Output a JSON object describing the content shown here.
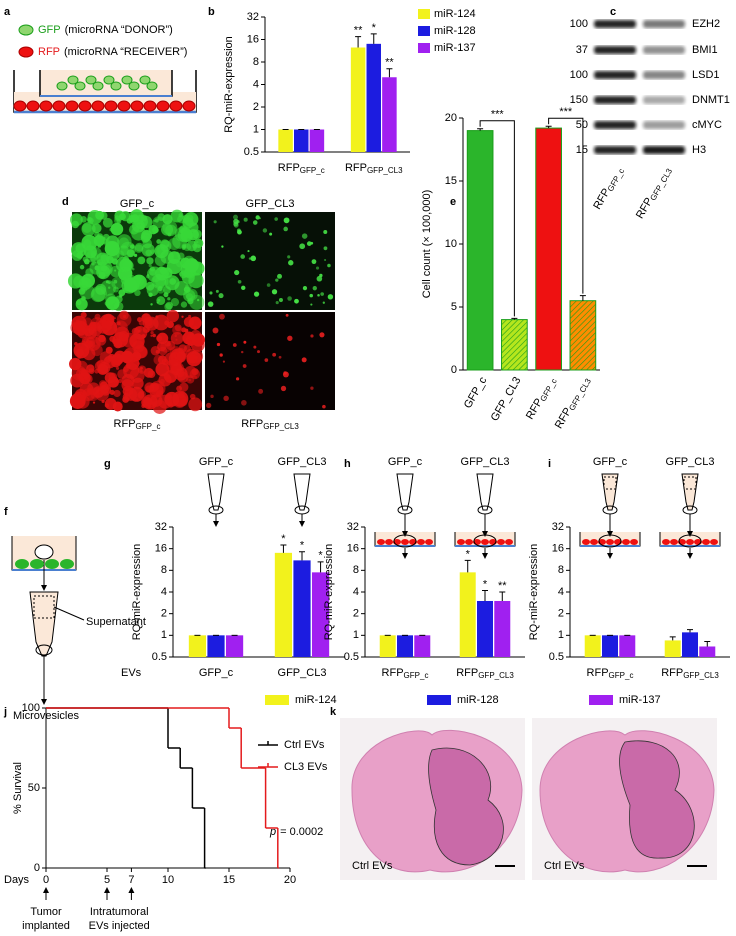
{
  "figure": {
    "a": {
      "letter": "a",
      "legend": [
        {
          "marker": "GFP",
          "text": "(microRNA “DONOR”)"
        },
        {
          "marker": "RFP",
          "text": "(microRNA “RECEIVER”)"
        }
      ]
    },
    "c": {
      "letter": "c",
      "markers": [
        100,
        37,
        100,
        150,
        50,
        15
      ],
      "proteins": [
        "EZH2",
        "BMI1",
        "LSD1",
        "DNMT1",
        "cMYC",
        "H3"
      ],
      "lanes": [
        {
          "main": "RFP",
          "sub": "GFP_c"
        },
        {
          "main": "RFP",
          "sub": "GFP_CL3"
        }
      ]
    },
    "d": {
      "letter": "d",
      "top": [
        "GFP_c",
        "GFP_CL3"
      ],
      "bottom": [
        {
          "main": "RFP",
          "sub": "GFP_c"
        },
        {
          "main": "RFP",
          "sub": "GFP_CL3"
        }
      ]
    },
    "f": {
      "letter": "f",
      "labels": [
        "Supernatant",
        "Microvesicles"
      ]
    },
    "k": {
      "letter": "k",
      "captions": [
        "Ctrl EVs",
        "Ctrl EVs"
      ]
    }
  },
  "chart_data": [
    {
      "type": "bar",
      "label": "b",
      "ylabel": "RQ-miR-expression",
      "yscale": "log",
      "ylim": [
        0.5,
        32
      ],
      "yticks": [
        0.5,
        1,
        2,
        4,
        8,
        16,
        32
      ],
      "categories": [
        "RFP",
        "RFP"
      ],
      "category_subscripts": [
        "GFP_c",
        "GFP_CL3"
      ],
      "category_color": "#e41a1c",
      "legend": "right",
      "series": [
        {
          "name": "miR-124",
          "color": "#f2f21c",
          "values": [
            1,
            12.5
          ],
          "errors": [
            0,
            5
          ],
          "stars": [
            null,
            "**"
          ]
        },
        {
          "name": "miR-128",
          "color": "#1c1ce0",
          "values": [
            1,
            14
          ],
          "errors": [
            0,
            5
          ],
          "stars": [
            null,
            "*"
          ]
        },
        {
          "name": "miR-137",
          "color": "#a020f0",
          "values": [
            1,
            5
          ],
          "errors": [
            0,
            1.5
          ],
          "stars": [
            null,
            "**"
          ]
        }
      ]
    },
    {
      "type": "bar",
      "label": "e",
      "ylabel": "Cell count (× 100,000)",
      "ylim": [
        0,
        20
      ],
      "yticks": [
        0,
        5,
        10,
        15,
        20
      ],
      "categories": [
        "GFP_c",
        "GFP_CL3",
        "RFP",
        "RFP"
      ],
      "category_subscripts": [
        null,
        null,
        "GFP_c",
        "GFP_CL3"
      ],
      "category_colors": [
        "#1a9e1a",
        "#1a9e1a",
        "#e41a1c",
        "#e41a1c"
      ],
      "values": [
        19,
        4,
        19.2,
        5.5
      ],
      "errors": [
        0.15,
        0.1,
        0.15,
        0.4
      ],
      "colors": [
        "#2bb52b",
        "#b5e61d",
        "#ee1111",
        "#ff8c00"
      ],
      "hatched": [
        false,
        true,
        false,
        true
      ],
      "brackets": [
        "***",
        "***"
      ]
    },
    {
      "type": "bar",
      "label": "g",
      "ylabel": "RQ-miR-expression",
      "yscale": "log",
      "ylim": [
        0.5,
        32
      ],
      "yticks": [
        0.5,
        1,
        2,
        4,
        8,
        16,
        32
      ],
      "x_prefix": "EVs",
      "top_labels": [
        "GFP_c",
        "GFP_CL3"
      ],
      "categories": [
        "GFP_c",
        "GFP_CL3"
      ],
      "category_color": "#1a9e1a",
      "legend": "bottom",
      "series": [
        {
          "name": "miR-124",
          "color": "#f2f21c",
          "values": [
            1,
            14
          ],
          "errors": [
            0,
            4
          ],
          "stars": [
            null,
            "*"
          ]
        },
        {
          "name": "miR-128",
          "color": "#1c1ce0",
          "values": [
            1,
            11
          ],
          "errors": [
            0,
            3.5
          ],
          "stars": [
            null,
            "*"
          ]
        },
        {
          "name": "miR-137",
          "color": "#a020f0",
          "values": [
            1,
            7.5
          ],
          "errors": [
            0,
            3
          ],
          "stars": [
            null,
            "*"
          ]
        }
      ]
    },
    {
      "type": "bar",
      "label": "h",
      "ylabel": "RQ-miR-expression",
      "yscale": "log",
      "ylim": [
        0.5,
        32
      ],
      "yticks": [
        0.5,
        1,
        2,
        4,
        8,
        16,
        32
      ],
      "top_labels": [
        "GFP_c",
        "GFP_CL3"
      ],
      "categories": [
        "RFP",
        "RFP"
      ],
      "category_subscripts": [
        "GFP_c",
        "GFP_CL3"
      ],
      "category_color": "#e41a1c",
      "series": [
        {
          "color": "#f2f21c",
          "values": [
            1,
            7.5
          ],
          "errors": [
            0,
            3.5
          ],
          "stars": [
            null,
            "*"
          ]
        },
        {
          "color": "#1c1ce0",
          "values": [
            1,
            3
          ],
          "errors": [
            0,
            1.2
          ],
          "stars": [
            null,
            "*"
          ]
        },
        {
          "color": "#a020f0",
          "values": [
            1,
            3
          ],
          "errors": [
            0,
            1
          ],
          "stars": [
            null,
            "**"
          ]
        }
      ]
    },
    {
      "type": "bar",
      "label": "i",
      "ylabel": "RQ-miR-expression",
      "yscale": "log",
      "ylim": [
        0.5,
        32
      ],
      "yticks": [
        0.5,
        1,
        2,
        4,
        8,
        16,
        32
      ],
      "top_labels": [
        "GFP_c",
        "GFP_CL3"
      ],
      "categories": [
        "RFP",
        "RFP"
      ],
      "category_subscripts": [
        "GFP_c",
        "GFP_CL3"
      ],
      "category_color": "#e41a1c",
      "series": [
        {
          "color": "#f2f21c",
          "values": [
            1,
            0.85
          ],
          "errors": [
            0,
            0.1
          ]
        },
        {
          "color": "#1c1ce0",
          "values": [
            1,
            1.1
          ],
          "errors": [
            0,
            0.1
          ]
        },
        {
          "color": "#a020f0",
          "values": [
            1,
            0.7
          ],
          "errors": [
            0,
            0.12
          ]
        }
      ]
    },
    {
      "type": "line",
      "label": "j",
      "step": true,
      "xlabel": "Days",
      "ylabel": "% Survival",
      "xlim": [
        0,
        20
      ],
      "xticks": [
        0,
        5,
        7,
        10,
        15,
        20
      ],
      "ylim": [
        0,
        100
      ],
      "yticks": [
        0,
        50,
        100
      ],
      "legend": "upper right",
      "p_symbol": "p",
      "p_text": "= 0.0002",
      "series": [
        {
          "name": "Ctrl EVs",
          "color": "#000000",
          "x": [
            0,
            10,
            11,
            12,
            13
          ],
          "values": [
            100,
            75,
            62.5,
            37.5,
            0
          ]
        },
        {
          "name": "CL3 EVs",
          "color": "#e41a1c",
          "x": [
            0,
            15,
            16,
            18,
            19
          ],
          "values": [
            100,
            87.5,
            62.5,
            25,
            0
          ]
        }
      ],
      "events": [
        {
          "x": [
            0
          ],
          "label": [
            "Tumor",
            "implanted"
          ]
        },
        {
          "x": [
            5,
            7
          ],
          "label": [
            "Intratumoral",
            "EVs injected"
          ]
        }
      ]
    }
  ]
}
